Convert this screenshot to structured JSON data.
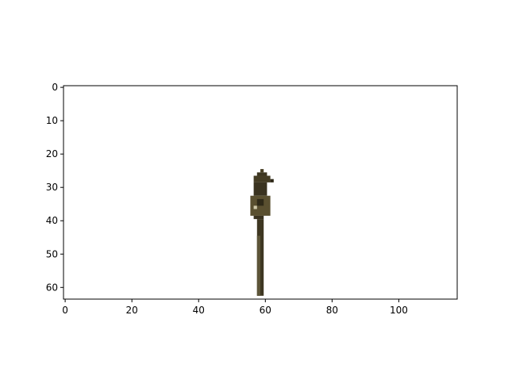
{
  "chart_data": {
    "type": "image",
    "xlim": [
      -0.5,
      117.5
    ],
    "ylim": [
      63.5,
      -0.5
    ],
    "xticks": [
      0,
      20,
      40,
      60,
      80,
      100
    ],
    "yticks": [
      0,
      10,
      20,
      30,
      40,
      50,
      60
    ],
    "pixels": [
      {
        "x0": 58.5,
        "x1": 59.5,
        "y0": 24.5,
        "y1": 25.5,
        "color": "#4a4228"
      },
      {
        "x0": 57.5,
        "x1": 60.5,
        "y0": 25.5,
        "y1": 26.5,
        "color": "#3c3520"
      },
      {
        "x0": 56.5,
        "x1": 61.5,
        "y0": 26.5,
        "y1": 28.5,
        "color": "#443c24"
      },
      {
        "x0": 61.5,
        "x1": 62.5,
        "y0": 27.5,
        "y1": 28.5,
        "color": "#2e2818"
      },
      {
        "x0": 56.5,
        "x1": 60.5,
        "y0": 28.5,
        "y1": 32.5,
        "color": "#3a3320"
      },
      {
        "x0": 55.5,
        "x1": 61.5,
        "y0": 32.5,
        "y1": 38.5,
        "color": "#5a5030"
      },
      {
        "x0": 57.5,
        "x1": 59.5,
        "y0": 33.5,
        "y1": 35.5,
        "color": "#2f2a18"
      },
      {
        "x0": 56.5,
        "x1": 57.5,
        "y0": 35.5,
        "y1": 36.5,
        "color": "#cfc8a8"
      },
      {
        "x0": 56.5,
        "x1": 59.5,
        "y0": 38.5,
        "y1": 39.5,
        "color": "#3a3320"
      },
      {
        "x0": 57.5,
        "x1": 59.5,
        "y0": 39.5,
        "y1": 62.5,
        "color": "#3e3722"
      },
      {
        "x0": 57.5,
        "x1": 58.5,
        "y0": 44.5,
        "y1": 62.5,
        "color": "#5c5438"
      }
    ]
  }
}
